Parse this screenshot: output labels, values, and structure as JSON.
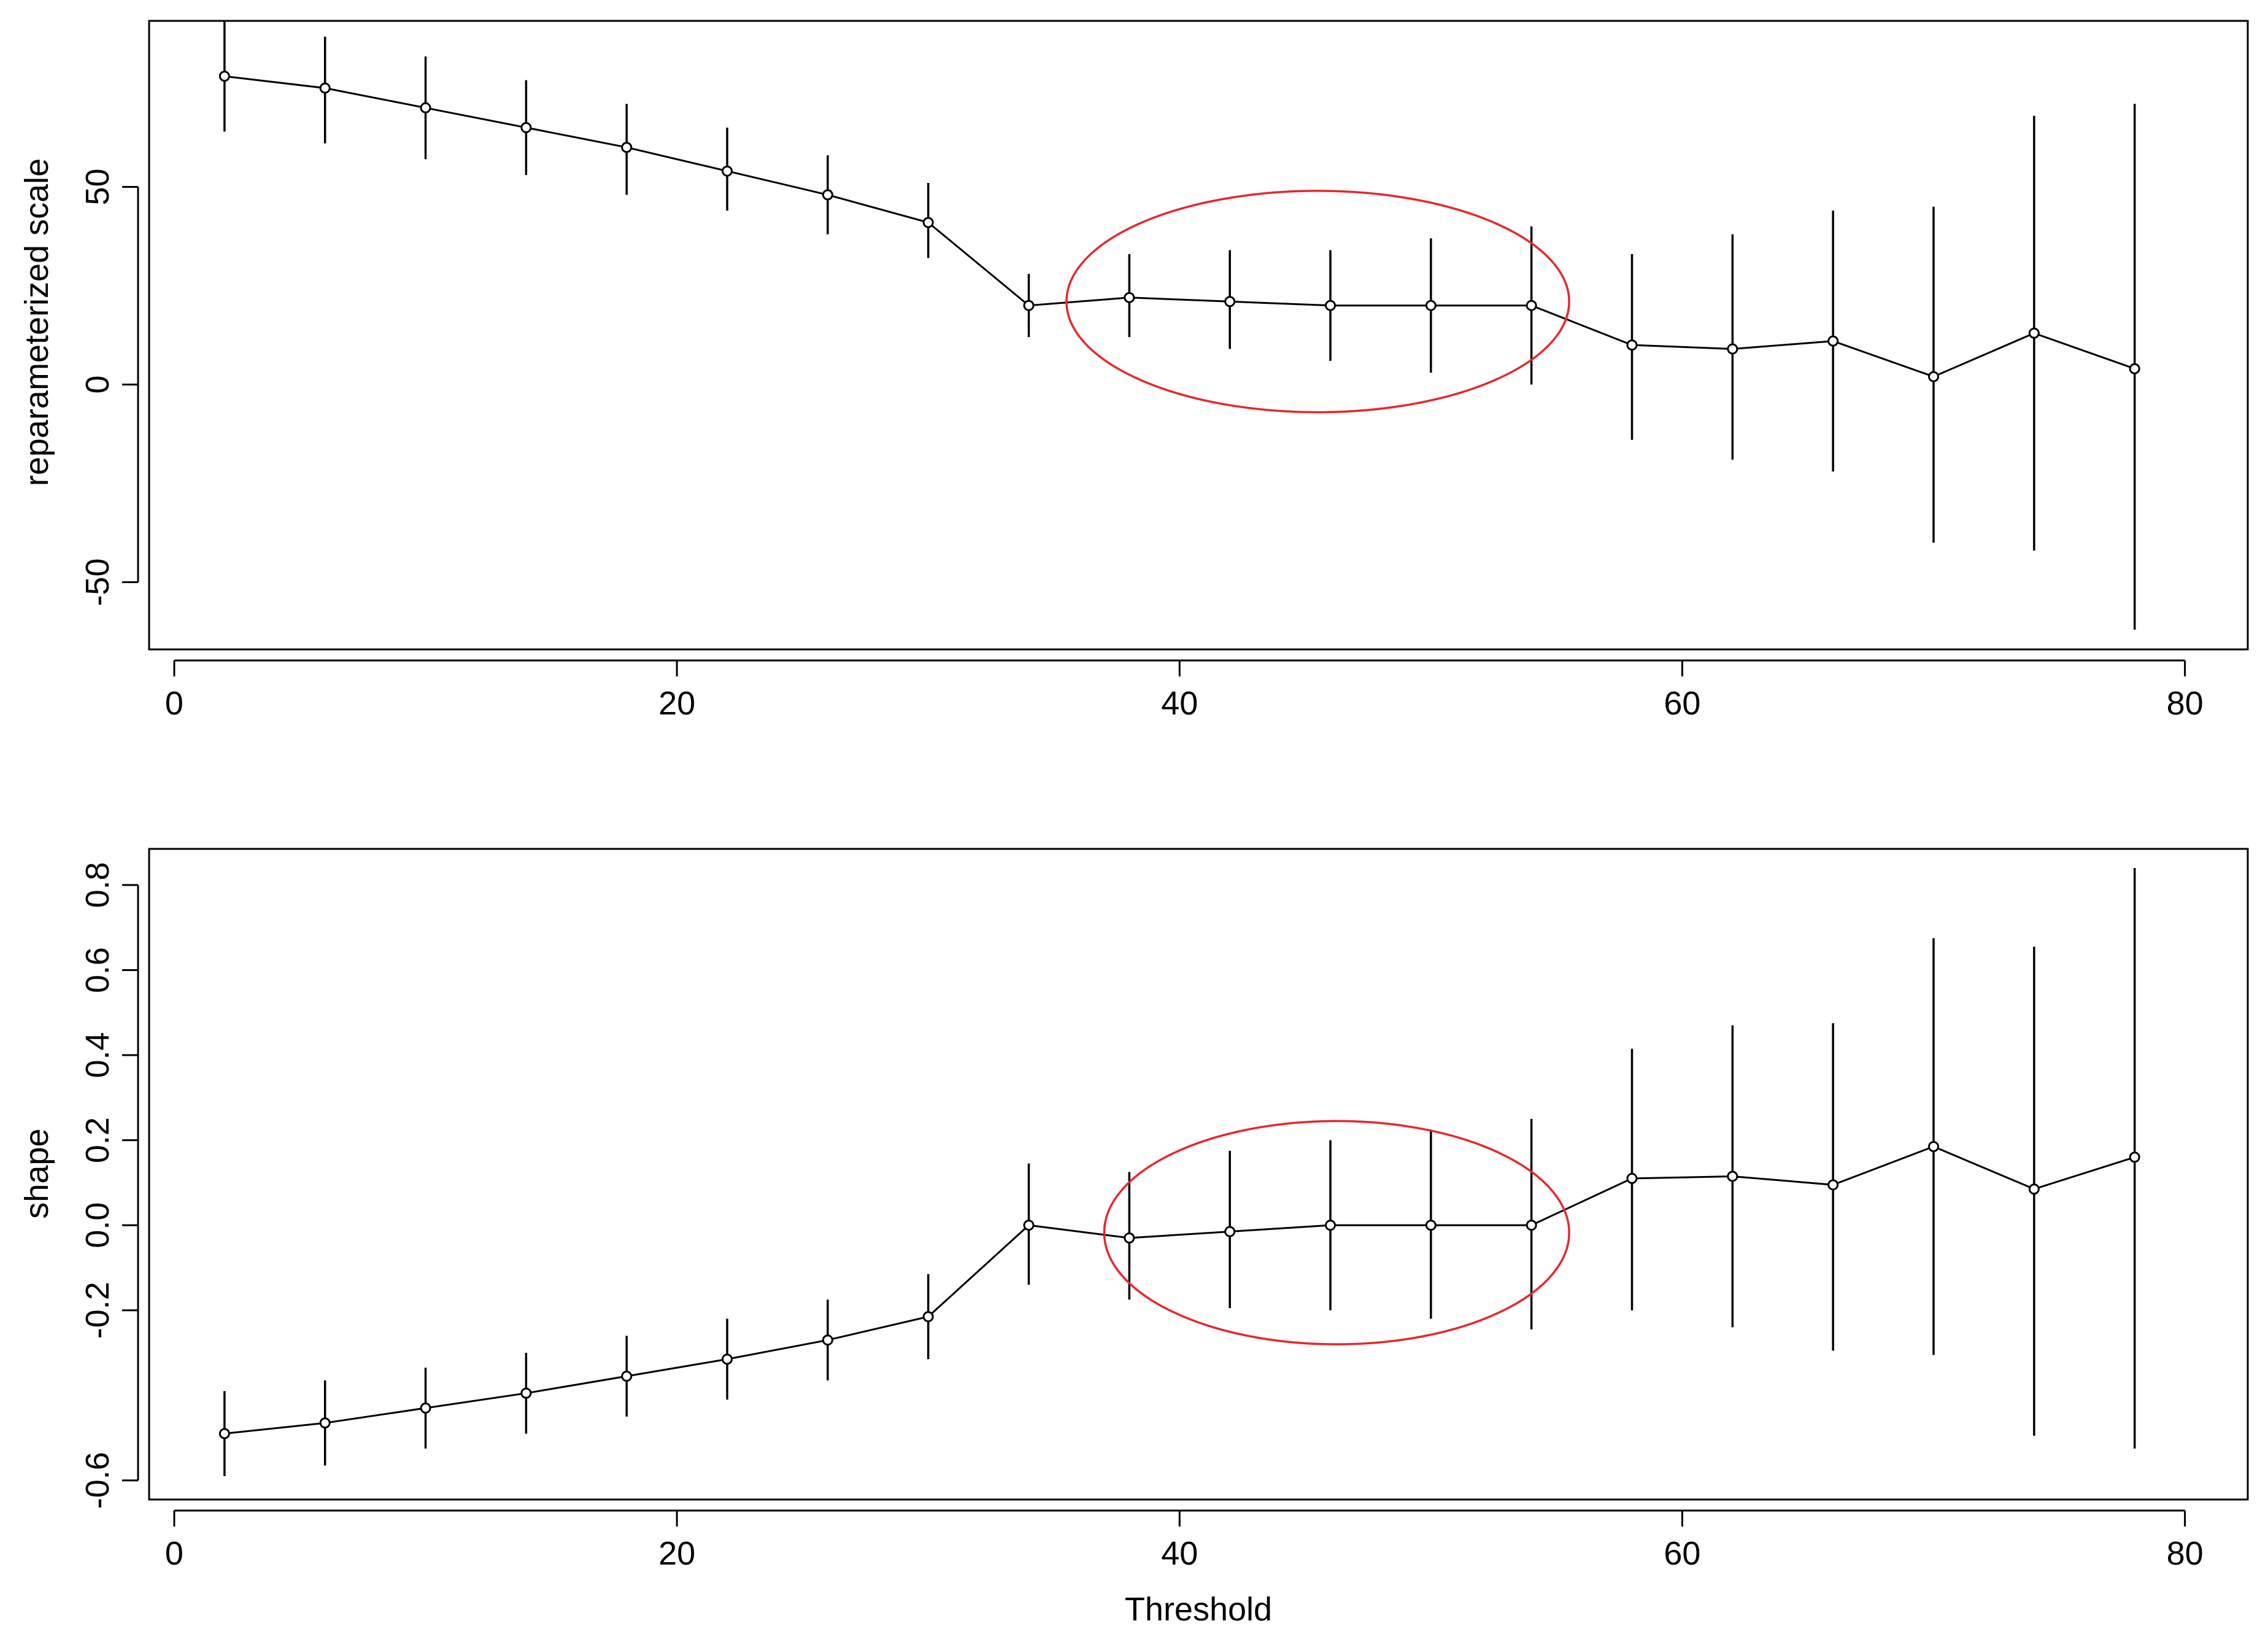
{
  "chart_data": [
    {
      "type": "scatter",
      "x": [
        2,
        6,
        10,
        14,
        18,
        22,
        26,
        30,
        34,
        38,
        42,
        46,
        50,
        54,
        58,
        62,
        66,
        70,
        74,
        78
      ],
      "series": [
        {
          "values": [
            78,
            75,
            70,
            65,
            60,
            54,
            48,
            41,
            20,
            22,
            21,
            20,
            20,
            20,
            10,
            9,
            11,
            2,
            13,
            4
          ],
          "lower": [
            64,
            61,
            57,
            53,
            48,
            44,
            38,
            32,
            12,
            12,
            9,
            6,
            3,
            0,
            -14,
            -19,
            -22,
            -40,
            -42,
            -62
          ],
          "upper": [
            92,
            88,
            83,
            77,
            71,
            65,
            58,
            51,
            28,
            33,
            34,
            34,
            37,
            40,
            33,
            38,
            44,
            45,
            68,
            71
          ]
        }
      ],
      "xlabel": "",
      "ylabel": "reparameterized scale",
      "xlim": [
        -1,
        82.5
      ],
      "ylim": [
        -67,
        92
      ],
      "xticks": [
        "0",
        "20",
        "40",
        "60",
        "80"
      ],
      "yticks": [
        "-50",
        "0",
        "50"
      ],
      "highlight_ellipse": {
        "x_range": [
          35.5,
          55.5
        ],
        "y_range": [
          -7,
          49
        ],
        "color": "#e8262a"
      }
    },
    {
      "type": "scatter",
      "x": [
        2,
        6,
        10,
        14,
        18,
        22,
        26,
        30,
        34,
        38,
        42,
        46,
        50,
        54,
        58,
        62,
        66,
        70,
        74,
        78
      ],
      "series": [
        {
          "values": [
            -0.49,
            -0.465,
            -0.43,
            -0.395,
            -0.355,
            -0.315,
            -0.27,
            -0.215,
            0.0,
            -0.03,
            -0.015,
            0.0,
            0.0,
            0.0,
            0.11,
            0.115,
            0.095,
            0.185,
            0.085,
            0.16
          ],
          "lower": [
            -0.59,
            -0.565,
            -0.525,
            -0.49,
            -0.45,
            -0.41,
            -0.365,
            -0.315,
            -0.14,
            -0.175,
            -0.195,
            -0.2,
            -0.22,
            -0.245,
            -0.2,
            -0.24,
            -0.295,
            -0.305,
            -0.495,
            -0.525
          ],
          "upper": [
            -0.39,
            -0.365,
            -0.335,
            -0.3,
            -0.26,
            -0.22,
            -0.175,
            -0.115,
            0.145,
            0.125,
            0.175,
            0.2,
            0.225,
            0.25,
            0.415,
            0.47,
            0.475,
            0.675,
            0.655,
            0.84
          ]
        }
      ],
      "xlabel": "Threshold",
      "ylabel": "shape",
      "xlim": [
        -1,
        82.5
      ],
      "ylim": [
        -0.645,
        0.885
      ],
      "xticks": [
        "0",
        "20",
        "40",
        "60",
        "80"
      ],
      "yticks": [
        "-0.6",
        "-0.2",
        "0.0",
        "0.2",
        "0.4",
        "0.6",
        "0.8"
      ],
      "highlight_ellipse": {
        "x_range": [
          37,
          55.5
        ],
        "y_range": [
          -0.28,
          0.245
        ],
        "color": "#e8262a"
      }
    }
  ]
}
